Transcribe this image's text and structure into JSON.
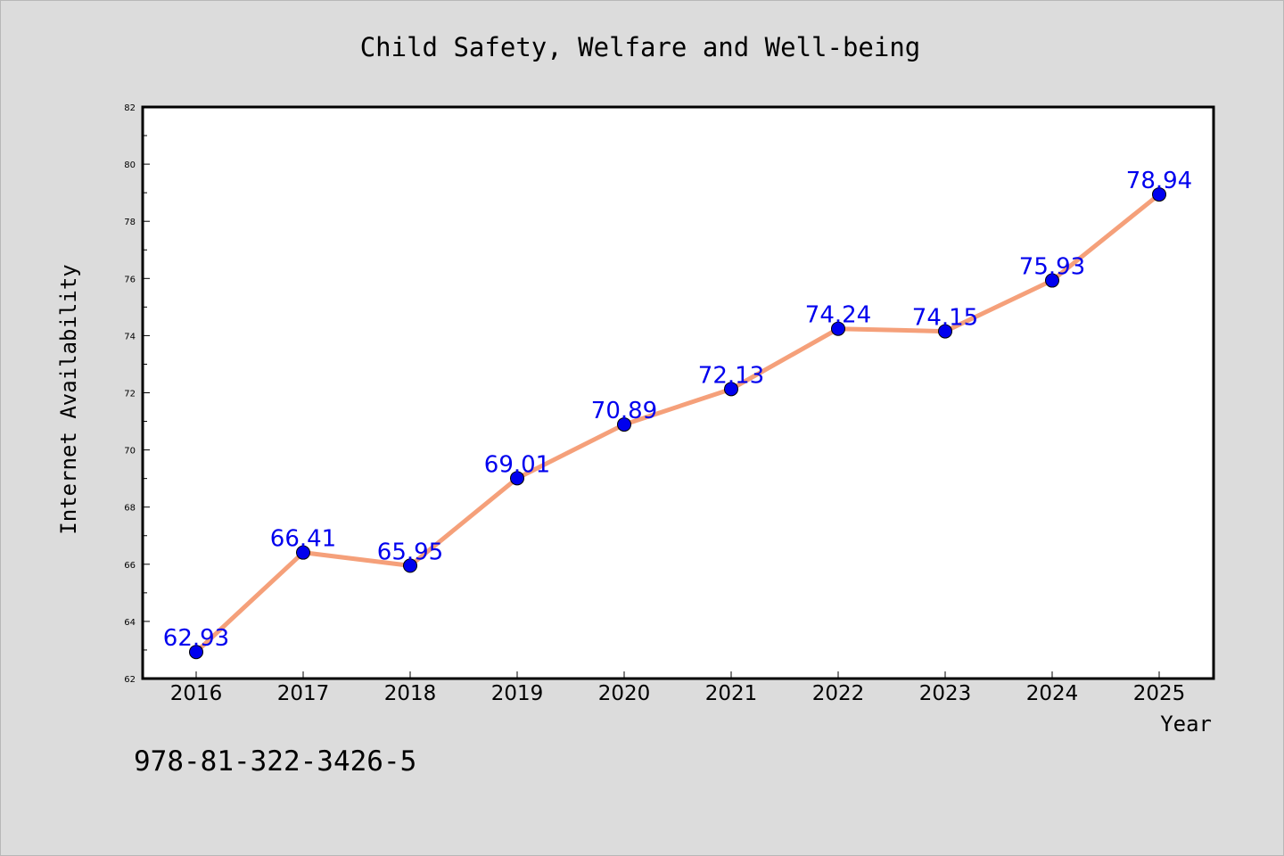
{
  "chart_data": {
    "type": "line",
    "title": "Child Safety, Welfare and Well-being",
    "xlabel": "Year",
    "ylabel": "Internet Availability",
    "categories": [
      "2016",
      "2017",
      "2018",
      "2019",
      "2020",
      "2021",
      "2022",
      "2023",
      "2024",
      "2025"
    ],
    "series": [
      {
        "values": [
          62.93,
          66.41,
          65.95,
          69.01,
          70.89,
          72.13,
          74.24,
          74.15,
          75.93,
          78.94
        ],
        "line_color": "#f5a07a",
        "marker_color": "#0000ee",
        "label_color": "#0000ee"
      }
    ],
    "ylim": [
      62,
      82
    ],
    "y_ticks": [
      62,
      64,
      66,
      68,
      70,
      72,
      74,
      76,
      78,
      80,
      82
    ],
    "grid": false,
    "legend": "none"
  },
  "footer_text": "978-81-322-3426-5",
  "colors": {
    "background": "#dcdcdc",
    "plot_background": "#ffffff"
  }
}
